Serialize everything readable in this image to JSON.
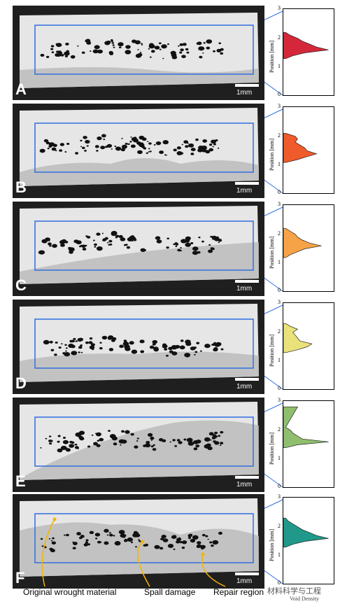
{
  "panels": [
    {
      "letter": "A",
      "scale": "1mm",
      "color": "#d4283a"
    },
    {
      "letter": "B",
      "scale": "1mm",
      "color": "#ef5b2a"
    },
    {
      "letter": "C",
      "scale": "1mm",
      "color": "#f6a348"
    },
    {
      "letter": "D",
      "scale": "1mm",
      "color": "#e9e27a"
    },
    {
      "letter": "E",
      "scale": "1mm",
      "color": "#8fbf6e"
    },
    {
      "letter": "F",
      "scale": "1mm",
      "color": "#20998a"
    }
  ],
  "plot": {
    "ylabel": "Position [mm]",
    "yticks": [
      "3",
      "2",
      "1",
      "0"
    ],
    "xlabel": "Void Density"
  },
  "annotations": {
    "original": "Original wrought material",
    "spall": "Spall damage",
    "repair": "Repair region"
  },
  "watermark": "材料科学与工程",
  "chart_data": [
    {
      "type": "area",
      "panel": "A",
      "ylim": [
        0,
        3
      ],
      "ylabel": "Position [mm]",
      "xlabel": "Void Density",
      "y": [
        1.3,
        1.4,
        1.5,
        1.6,
        1.7,
        1.8,
        1.9,
        2.0,
        2.1,
        2.2
      ],
      "x": [
        0.05,
        0.2,
        0.45,
        0.95,
        0.7,
        0.55,
        0.4,
        0.3,
        0.15,
        0.05
      ]
    },
    {
      "type": "area",
      "panel": "B",
      "ylim": [
        0,
        3
      ],
      "ylabel": "Position [mm]",
      "xlabel": "Void Density",
      "y": [
        1.1,
        1.2,
        1.3,
        1.4,
        1.5,
        1.6,
        1.7,
        1.8,
        1.9,
        2.0,
        2.1
      ],
      "x": [
        0.05,
        0.3,
        0.5,
        0.7,
        0.5,
        0.45,
        0.35,
        0.25,
        0.3,
        0.25,
        0.05
      ]
    },
    {
      "type": "area",
      "panel": "C",
      "ylim": [
        0,
        3
      ],
      "ylabel": "Position [mm]",
      "xlabel": "Void Density",
      "y": [
        1.2,
        1.3,
        1.4,
        1.5,
        1.6,
        1.7,
        1.8,
        1.9,
        2.0,
        2.1,
        2.2
      ],
      "x": [
        0.05,
        0.15,
        0.3,
        0.45,
        0.8,
        0.55,
        0.4,
        0.3,
        0.25,
        0.15,
        0.05
      ]
    },
    {
      "type": "area",
      "panel": "D",
      "ylim": [
        0,
        3
      ],
      "ylabel": "Position [mm]",
      "xlabel": "Void Density",
      "y": [
        1.3,
        1.4,
        1.5,
        1.6,
        1.7,
        1.8,
        1.9,
        2.0,
        2.1,
        2.2,
        2.3
      ],
      "x": [
        0.05,
        0.3,
        0.5,
        0.6,
        0.35,
        0.3,
        0.25,
        0.2,
        0.3,
        0.15,
        0.05
      ]
    },
    {
      "type": "area",
      "panel": "E",
      "ylim": [
        0,
        3
      ],
      "ylabel": "Position [mm]",
      "xlabel": "Void Density",
      "y": [
        1.4,
        1.5,
        1.6,
        1.7,
        1.8,
        1.9,
        2.0,
        2.1,
        2.8
      ],
      "x": [
        0.05,
        0.3,
        0.95,
        0.4,
        0.3,
        0.2,
        0.15,
        0.05,
        0.3
      ]
    },
    {
      "type": "area",
      "panel": "F",
      "ylim": [
        0,
        3
      ],
      "ylabel": "Position [mm]",
      "xlabel": "Void Density",
      "y": [
        1.3,
        1.4,
        1.5,
        1.6,
        1.7,
        1.8,
        1.9,
        2.0,
        2.1,
        2.2,
        2.3
      ],
      "x": [
        0.05,
        0.2,
        0.45,
        0.95,
        0.7,
        0.55,
        0.4,
        0.3,
        0.2,
        0.1,
        0.05
      ]
    }
  ]
}
